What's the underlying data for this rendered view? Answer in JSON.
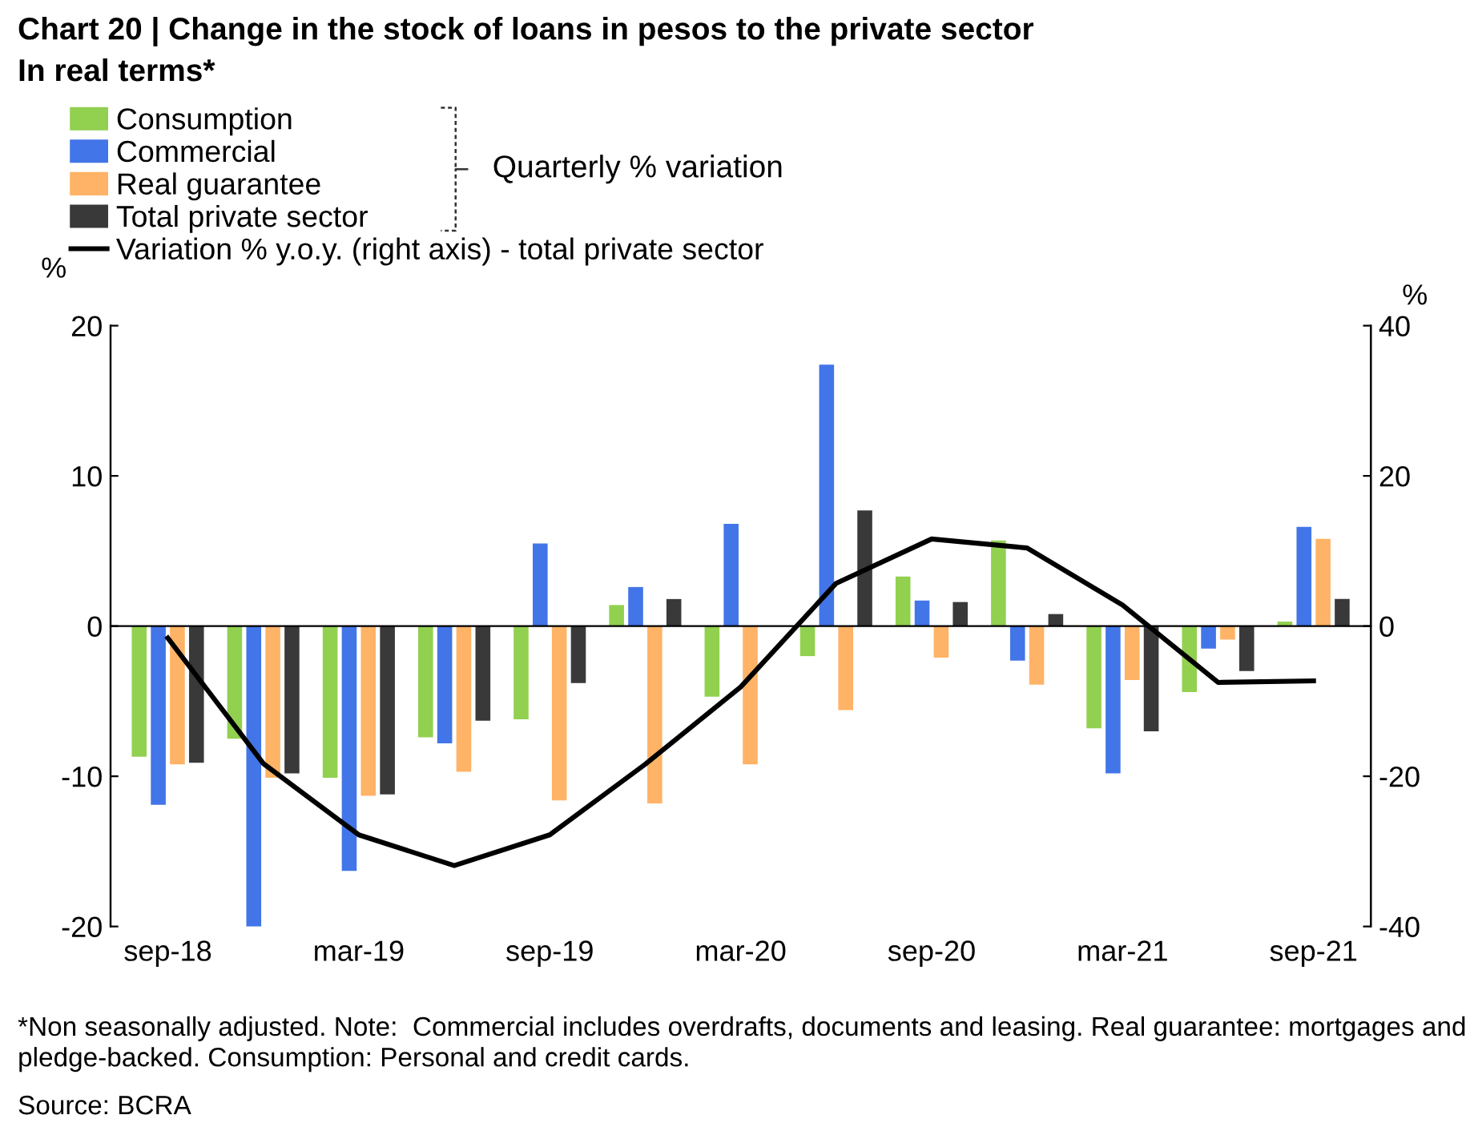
{
  "chart_data": {
    "type": "bar",
    "title": "Chart 20 | Change in the stock of loans in pesos to the private sector",
    "subtitle": "In real terms*",
    "ylabel": "%",
    "y2label": "%",
    "categories": [
      "sep-18",
      null,
      "mar-19",
      null,
      "sep-19",
      null,
      "mar-20",
      null,
      "sep-20",
      null,
      "mar-21",
      null,
      "sep-21"
    ],
    "series": [
      {
        "name": "Consumption",
        "color": "#92d050",
        "values": [
          -8.7,
          -7.5,
          -10.1,
          -7.4,
          -6.2,
          1.4,
          -4.7,
          -2.0,
          3.3,
          5.7,
          -6.8,
          -4.4,
          0.3
        ]
      },
      {
        "name": "Commercial",
        "color": "#4275e8",
        "values": [
          -11.9,
          -20.0,
          -16.3,
          -7.8,
          5.5,
          2.6,
          6.8,
          17.4,
          1.7,
          -2.3,
          -9.8,
          -1.5,
          6.6
        ]
      },
      {
        "name": "Real guarantee",
        "color": "#ffb366",
        "values": [
          -9.2,
          -10.1,
          -11.3,
          -9.7,
          -11.6,
          -11.8,
          -9.2,
          -5.6,
          -2.1,
          -3.9,
          -3.6,
          -0.9,
          5.8
        ]
      },
      {
        "name": "Total private sector",
        "color": "#393939",
        "values": [
          -9.1,
          -9.8,
          -11.2,
          -6.3,
          -3.8,
          1.8,
          null,
          7.7,
          1.6,
          0.8,
          -7.0,
          -3.0,
          1.8
        ]
      },
      {
        "name": "Variation % y.o.y. (right axis) - total private sector",
        "type": "line",
        "axis": "y2",
        "color": "#000000",
        "values": [
          -1.6,
          -18.3,
          -27.8,
          -31.9,
          -27.8,
          -18.4,
          -8.1,
          5.7,
          11.6,
          10.4,
          2.8,
          -7.5,
          -7.3
        ]
      }
    ],
    "ylim": [
      -20,
      20
    ],
    "yticks": [
      -20,
      -10,
      0,
      10,
      20
    ],
    "y2lim": [
      -40,
      40
    ],
    "y2ticks": [
      -40,
      -20,
      0,
      20,
      40
    ],
    "legend": "top left",
    "marker": "none",
    "line_style": "solid",
    "annotations": [
      "Quarterly % variation",
      "*Non seasonally adjusted. Note:  Commercial includes overdrafts, documents and leasing. Real guarantee: mortgages and pledge-backed. Consumption: Personal and credit cards.",
      "Source: BCRA"
    ]
  }
}
